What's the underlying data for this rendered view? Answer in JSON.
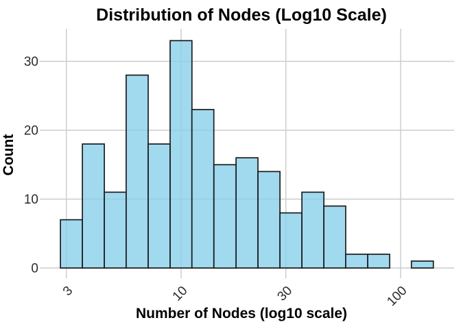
{
  "chart_data": {
    "type": "bar",
    "subtype": "histogram",
    "title": "Distribution of Nodes (Log10 Scale)",
    "xlabel": "Number of Nodes (log10 scale)",
    "ylabel": "Count",
    "x_scale": "log10",
    "x_tick_labels": [
      "3",
      "10",
      "30",
      "100"
    ],
    "x_ticks": [
      3,
      10,
      30,
      100
    ],
    "y_tick_labels": [
      "0",
      "10",
      "20",
      "30"
    ],
    "y_ticks": [
      0,
      10,
      20,
      30
    ],
    "ylim": [
      0,
      34.7
    ],
    "grid": true,
    "legend": false,
    "bin_edges": [
      2.82,
      3.55,
      4.47,
      5.62,
      7.08,
      8.91,
      11.2,
      14.1,
      17.8,
      22.4,
      28.2,
      35.5,
      44.7,
      56.2,
      70.8,
      89.1,
      112,
      141
    ],
    "counts": [
      7,
      18,
      11,
      28,
      18,
      33,
      23,
      15,
      16,
      14,
      8,
      11,
      9,
      2,
      2,
      0,
      1
    ],
    "colors": {
      "bar_fill": "#87CEEB",
      "bar_fill_opacity": 0.78,
      "bar_stroke": "#1b1b1b",
      "gridline": "#cbcbcb",
      "tick_text": "#2b2b2b",
      "title_text": "#000000",
      "background": "#ffffff"
    }
  }
}
